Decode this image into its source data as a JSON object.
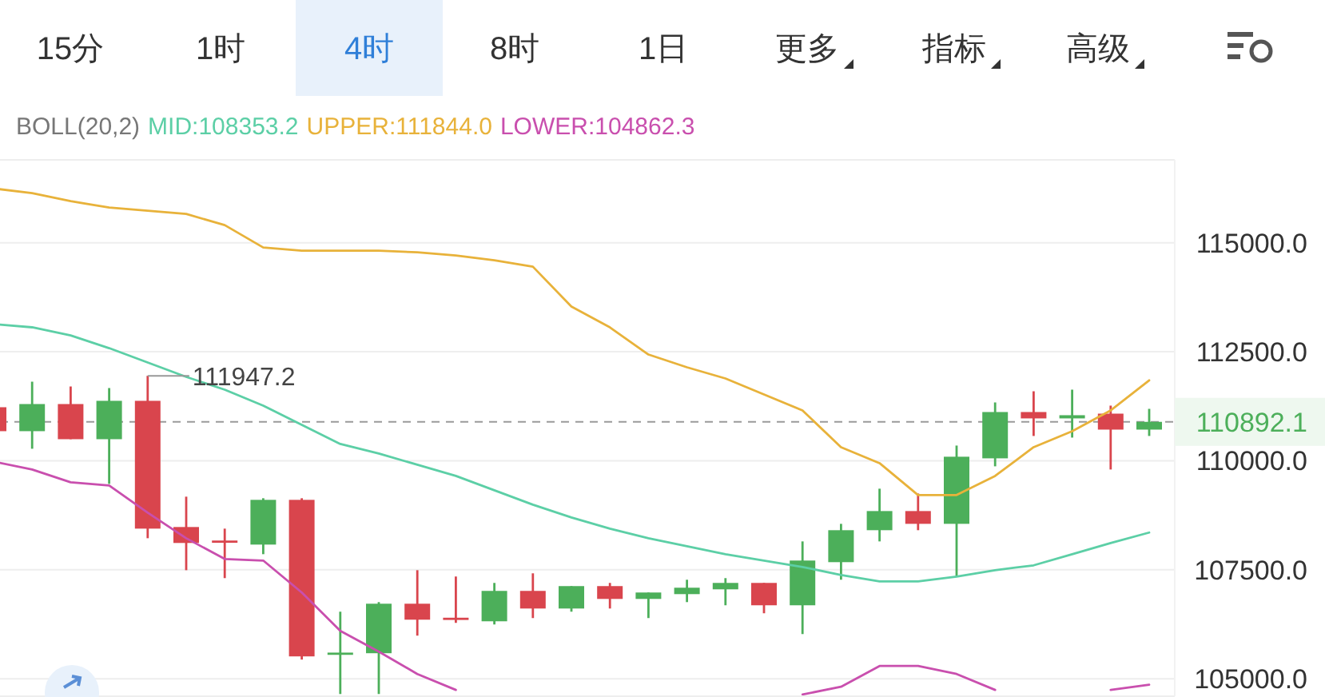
{
  "chart_data": {
    "type": "candlestick",
    "categories": [
      null,
      null,
      null,
      null,
      null,
      null,
      null,
      null,
      null,
      null,
      null,
      null,
      null,
      null,
      null,
      null,
      null,
      null,
      null,
      null,
      null,
      null,
      null,
      null,
      null,
      null,
      null,
      null,
      null,
      null,
      null
    ],
    "ohlc": [
      [
        111227,
        111300,
        110600,
        110678
      ],
      [
        110678,
        111813,
        110275,
        111300
      ],
      [
        111300,
        111703,
        110494,
        110494
      ],
      [
        110494,
        111667,
        109469,
        111374
      ],
      [
        111374,
        111947.2,
        108223,
        108443
      ],
      [
        108480,
        109176,
        107490,
        108114
      ],
      [
        108170,
        108443,
        107308,
        108150
      ],
      [
        108077,
        109140,
        107857,
        109103
      ],
      [
        109103,
        109140,
        105440,
        105513
      ],
      [
        105550,
        106538,
        104650,
        105600
      ],
      [
        105586,
        106758,
        104650,
        106721
      ],
      [
        106721,
        107490,
        105989,
        106355
      ],
      [
        106400,
        107345,
        106282,
        106355
      ],
      [
        106318,
        107198,
        106245,
        107015
      ],
      [
        107015,
        107418,
        106392,
        106611
      ],
      [
        106611,
        107125,
        106538,
        107125
      ],
      [
        107125,
        107198,
        106611,
        106831
      ],
      [
        106831,
        106978,
        106392,
        106978
      ],
      [
        106941,
        107271,
        106758,
        107088
      ],
      [
        107051,
        107308,
        106685,
        107198
      ],
      [
        107198,
        107198,
        106502,
        106685
      ],
      [
        106685,
        108150,
        106025,
        107711
      ],
      [
        107674,
        108553,
        107271,
        108407
      ],
      [
        108407,
        109359,
        108150,
        108846
      ],
      [
        108846,
        109249,
        108407,
        108553
      ],
      [
        108553,
        110348,
        107345,
        110092
      ],
      [
        110055,
        111337,
        109872,
        111117
      ],
      [
        111117,
        111593,
        110568,
        110971
      ],
      [
        110971,
        111630,
        110531,
        111044
      ],
      [
        111080,
        111264,
        109799,
        110714
      ],
      [
        110714,
        111190,
        110568,
        110892.1
      ]
    ],
    "series": [
      {
        "name": "MID:108353.2",
        "type": "line",
        "color": "#5ccfa6",
        "values": [
          113132,
          113060,
          112875,
          112582,
          112253,
          111923,
          111630,
          111264,
          110824,
          110385,
          110165,
          109909,
          109652,
          109322,
          108993,
          108700,
          108443,
          108223,
          108040,
          107857,
          107710,
          107564,
          107381,
          107234,
          107234,
          107344,
          107491,
          107601,
          107857,
          108114,
          108353.2
        ]
      },
      {
        "name": "UPPER:111844.0",
        "type": "line",
        "color": "#e8b23a",
        "values": [
          116245,
          116136,
          115952,
          115806,
          115733,
          115659,
          115403,
          114890,
          114817,
          114817,
          114817,
          114780,
          114707,
          114597,
          114451,
          113535,
          113059,
          112436,
          112143,
          111887,
          111520,
          111154,
          110311,
          109945,
          109213,
          109213,
          109652,
          110311,
          110678,
          111154,
          111844.0
        ]
      },
      {
        "name": "LOWER:104862.3",
        "type": "line",
        "color": "#c94fae",
        "values": [
          109982,
          109799,
          109505,
          109432,
          108810,
          108223,
          107747,
          107711,
          106978,
          106099,
          105623,
          105110,
          104744,
          null,
          null,
          null,
          null,
          null,
          null,
          null,
          null,
          104640,
          104817,
          105293,
          105293,
          105110,
          104744,
          null,
          null,
          104744,
          104862.3
        ]
      }
    ],
    "legend_title": "BOLL(20,2)",
    "legend": "top",
    "ylim": [
      104600,
      116900
    ],
    "yticks": [
      {
        "value": 105000,
        "label": "105000.0"
      },
      {
        "value": 107500,
        "label": "107500.0"
      },
      {
        "value": 110000,
        "label": "110000.0"
      },
      {
        "value": 112500,
        "label": "112500.0"
      },
      {
        "value": 115000,
        "label": "115000.0"
      }
    ],
    "grid": "y",
    "ref_lines": [
      {
        "axis": "y",
        "value": 110892.1,
        "label": "110892.1",
        "color": "#9a9a9a",
        "line_style": "dashed"
      }
    ],
    "annotations": [
      "15分",
      "1时",
      "4时",
      "8时",
      "1日",
      "更多",
      "指标",
      "高级",
      "111947.2"
    ]
  }
}
